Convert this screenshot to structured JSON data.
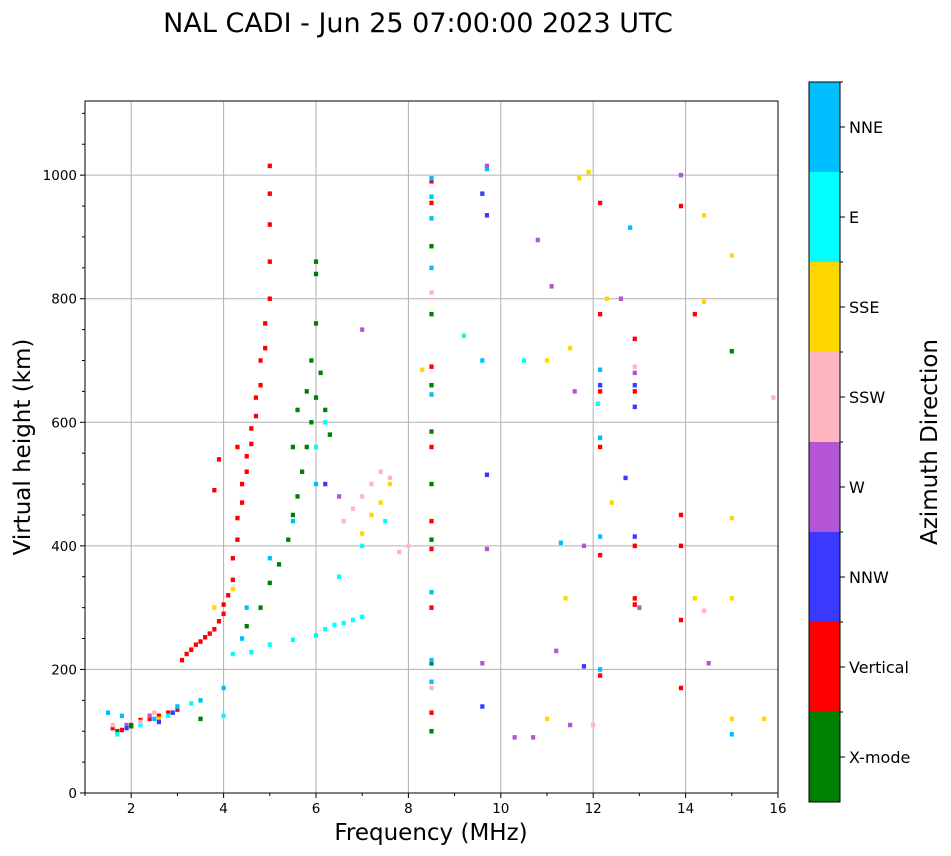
{
  "chart_data": {
    "type": "scatter",
    "title": "NAL CADI - Jun 25 07:00:00 2023 UTC",
    "xlabel": "Frequency (MHz)",
    "ylabel": "Virtual height (km)",
    "xlim": [
      1,
      16
    ],
    "ylim": [
      0,
      1120
    ],
    "xticks": [
      "2",
      "4",
      "6",
      "8",
      "10",
      "12",
      "14",
      "16"
    ],
    "yticks": [
      "0",
      "200",
      "400",
      "600",
      "800",
      "1000"
    ],
    "grid": true,
    "colorbar": {
      "label": "Azimuth Direction",
      "categories": [
        {
          "name": "X-mode",
          "color": "#008000"
        },
        {
          "name": "Vertical",
          "color": "#ff0000"
        },
        {
          "name": "NNW",
          "color": "#3a3aff"
        },
        {
          "name": "W",
          "color": "#b455d6"
        },
        {
          "name": "SSW",
          "color": "#ffb6c1"
        },
        {
          "name": "SSE",
          "color": "#ffd700"
        },
        {
          "name": "E",
          "color": "#00ffff"
        },
        {
          "name": "NNE",
          "color": "#00bfff"
        }
      ]
    },
    "series": [
      {
        "name": "Vertical",
        "points": [
          [
            1.6,
            105
          ],
          [
            1.8,
            102
          ],
          [
            2.0,
            110
          ],
          [
            2.2,
            118
          ],
          [
            2.4,
            120
          ],
          [
            2.6,
            125
          ],
          [
            2.8,
            130
          ],
          [
            3.0,
            135
          ],
          [
            3.1,
            215
          ],
          [
            3.2,
            225
          ],
          [
            3.3,
            232
          ],
          [
            3.4,
            240
          ],
          [
            3.5,
            245
          ],
          [
            3.6,
            252
          ],
          [
            3.7,
            258
          ],
          [
            3.8,
            265
          ],
          [
            3.9,
            278
          ],
          [
            4.0,
            290
          ],
          [
            4.0,
            305
          ],
          [
            4.1,
            320
          ],
          [
            4.2,
            345
          ],
          [
            4.2,
            380
          ],
          [
            4.3,
            410
          ],
          [
            4.3,
            445
          ],
          [
            4.4,
            470
          ],
          [
            4.4,
            500
          ],
          [
            4.5,
            520
          ],
          [
            4.5,
            545
          ],
          [
            4.6,
            565
          ],
          [
            4.6,
            590
          ],
          [
            4.7,
            610
          ],
          [
            4.7,
            640
          ],
          [
            4.8,
            660
          ],
          [
            4.8,
            700
          ],
          [
            4.9,
            720
          ],
          [
            4.9,
            760
          ],
          [
            5.0,
            800
          ],
          [
            5.0,
            860
          ],
          [
            5.0,
            920
          ],
          [
            5.0,
            970
          ],
          [
            5.0,
            1015
          ],
          [
            4.3,
            560
          ],
          [
            3.9,
            540
          ],
          [
            3.8,
            490
          ],
          [
            8.5,
            990
          ],
          [
            8.5,
            955
          ],
          [
            8.5,
            690
          ],
          [
            8.5,
            560
          ],
          [
            8.5,
            440
          ],
          [
            8.5,
            395
          ],
          [
            8.5,
            300
          ],
          [
            8.5,
            130
          ],
          [
            12.15,
            955
          ],
          [
            12.15,
            775
          ],
          [
            12.15,
            650
          ],
          [
            12.15,
            560
          ],
          [
            12.15,
            385
          ],
          [
            12.15,
            190
          ],
          [
            12.9,
            735
          ],
          [
            12.9,
            650
          ],
          [
            12.9,
            400
          ],
          [
            12.9,
            315
          ],
          [
            12.9,
            305
          ],
          [
            13.9,
            950
          ],
          [
            13.9,
            450
          ],
          [
            13.9,
            400
          ],
          [
            13.9,
            280
          ],
          [
            13.9,
            170
          ],
          [
            14.2,
            775
          ]
        ]
      },
      {
        "name": "X-mode",
        "points": [
          [
            1.7,
            100
          ],
          [
            2.0,
            108
          ],
          [
            3.5,
            120
          ],
          [
            4.5,
            270
          ],
          [
            4.8,
            300
          ],
          [
            5.0,
            340
          ],
          [
            5.2,
            370
          ],
          [
            5.4,
            410
          ],
          [
            5.5,
            450
          ],
          [
            5.6,
            480
          ],
          [
            5.7,
            520
          ],
          [
            5.8,
            560
          ],
          [
            5.9,
            600
          ],
          [
            6.0,
            640
          ],
          [
            6.1,
            680
          ],
          [
            6.2,
            620
          ],
          [
            6.3,
            580
          ],
          [
            5.5,
            560
          ],
          [
            5.6,
            620
          ],
          [
            5.8,
            650
          ],
          [
            5.9,
            700
          ],
          [
            6.0,
            760
          ],
          [
            6.0,
            840
          ],
          [
            6.0,
            860
          ],
          [
            8.5,
            885
          ],
          [
            8.5,
            775
          ],
          [
            8.5,
            660
          ],
          [
            8.5,
            585
          ],
          [
            8.5,
            500
          ],
          [
            8.5,
            410
          ],
          [
            8.5,
            210
          ],
          [
            8.5,
            100
          ],
          [
            15.0,
            715
          ]
        ]
      },
      {
        "name": "NNE",
        "points": [
          [
            1.5,
            130
          ],
          [
            1.8,
            125
          ],
          [
            2.5,
            120
          ],
          [
            3.0,
            140
          ],
          [
            3.5,
            150
          ],
          [
            4.0,
            170
          ],
          [
            4.4,
            250
          ],
          [
            4.5,
            300
          ],
          [
            5.0,
            380
          ],
          [
            5.5,
            440
          ],
          [
            6.0,
            500
          ],
          [
            8.5,
            995
          ],
          [
            8.5,
            965
          ],
          [
            8.5,
            930
          ],
          [
            8.5,
            850
          ],
          [
            8.5,
            645
          ],
          [
            8.5,
            325
          ],
          [
            8.5,
            215
          ],
          [
            8.5,
            180
          ],
          [
            9.7,
            1010
          ],
          [
            9.6,
            700
          ],
          [
            12.15,
            685
          ],
          [
            12.15,
            575
          ],
          [
            12.15,
            415
          ],
          [
            12.15,
            200
          ],
          [
            11.3,
            405
          ],
          [
            12.8,
            915
          ],
          [
            15.0,
            95
          ]
        ]
      },
      {
        "name": "E",
        "points": [
          [
            1.7,
            95
          ],
          [
            2.2,
            110
          ],
          [
            2.8,
            125
          ],
          [
            3.3,
            145
          ],
          [
            4.0,
            125
          ],
          [
            4.2,
            225
          ],
          [
            4.6,
            228
          ],
          [
            5.0,
            240
          ],
          [
            5.5,
            248
          ],
          [
            6.0,
            255
          ],
          [
            6.2,
            265
          ],
          [
            6.4,
            272
          ],
          [
            6.6,
            275
          ],
          [
            6.8,
            280
          ],
          [
            7.0,
            285
          ],
          [
            6.5,
            350
          ],
          [
            7.0,
            400
          ],
          [
            7.5,
            440
          ],
          [
            6.0,
            560
          ],
          [
            6.2,
            600
          ],
          [
            9.2,
            740
          ],
          [
            10.5,
            700
          ],
          [
            12.1,
            630
          ]
        ]
      },
      {
        "name": "SSE",
        "points": [
          [
            2.6,
            120
          ],
          [
            3.8,
            300
          ],
          [
            4.2,
            330
          ],
          [
            7.0,
            420
          ],
          [
            7.2,
            450
          ],
          [
            7.4,
            470
          ],
          [
            7.6,
            500
          ],
          [
            8.3,
            685
          ],
          [
            11.0,
            700
          ],
          [
            11.5,
            720
          ],
          [
            11.7,
            995
          ],
          [
            11.9,
            1005
          ],
          [
            12.3,
            800
          ],
          [
            12.4,
            470
          ],
          [
            11.4,
            315
          ],
          [
            11.0,
            120
          ],
          [
            14.2,
            315
          ],
          [
            14.4,
            935
          ],
          [
            14.4,
            795
          ],
          [
            15.0,
            870
          ],
          [
            15.0,
            445
          ],
          [
            15.0,
            315
          ],
          [
            15.0,
            120
          ],
          [
            15.7,
            120
          ]
        ]
      },
      {
        "name": "SSW",
        "points": [
          [
            1.6,
            110
          ],
          [
            2.2,
            115
          ],
          [
            2.5,
            130
          ],
          [
            6.6,
            440
          ],
          [
            6.8,
            460
          ],
          [
            7.0,
            480
          ],
          [
            7.2,
            500
          ],
          [
            7.4,
            520
          ],
          [
            7.6,
            510
          ],
          [
            7.8,
            390
          ],
          [
            8.0,
            400
          ],
          [
            8.5,
            810
          ],
          [
            8.5,
            170
          ],
          [
            12.0,
            110
          ],
          [
            12.9,
            690
          ],
          [
            14.4,
            295
          ],
          [
            15.9,
            640
          ]
        ]
      },
      {
        "name": "W",
        "points": [
          [
            1.9,
            110
          ],
          [
            2.4,
            125
          ],
          [
            6.5,
            480
          ],
          [
            7.0,
            750
          ],
          [
            9.7,
            1015
          ],
          [
            9.7,
            395
          ],
          [
            9.6,
            210
          ],
          [
            10.3,
            90
          ],
          [
            10.7,
            90
          ],
          [
            10.8,
            895
          ],
          [
            11.1,
            820
          ],
          [
            11.6,
            650
          ],
          [
            11.2,
            230
          ],
          [
            11.5,
            110
          ],
          [
            11.8,
            400
          ],
          [
            12.6,
            800
          ],
          [
            12.9,
            680
          ],
          [
            13.0,
            300
          ],
          [
            13.9,
            1000
          ],
          [
            14.5,
            210
          ]
        ]
      },
      {
        "name": "NNW",
        "points": [
          [
            1.9,
            105
          ],
          [
            2.6,
            115
          ],
          [
            2.9,
            130
          ],
          [
            6.2,
            500
          ],
          [
            9.6,
            970
          ],
          [
            9.7,
            935
          ],
          [
            9.7,
            515
          ],
          [
            9.6,
            140
          ],
          [
            11.8,
            205
          ],
          [
            12.15,
            660
          ],
          [
            12.7,
            510
          ],
          [
            12.9,
            660
          ],
          [
            12.9,
            625
          ],
          [
            12.9,
            415
          ]
        ]
      }
    ]
  }
}
